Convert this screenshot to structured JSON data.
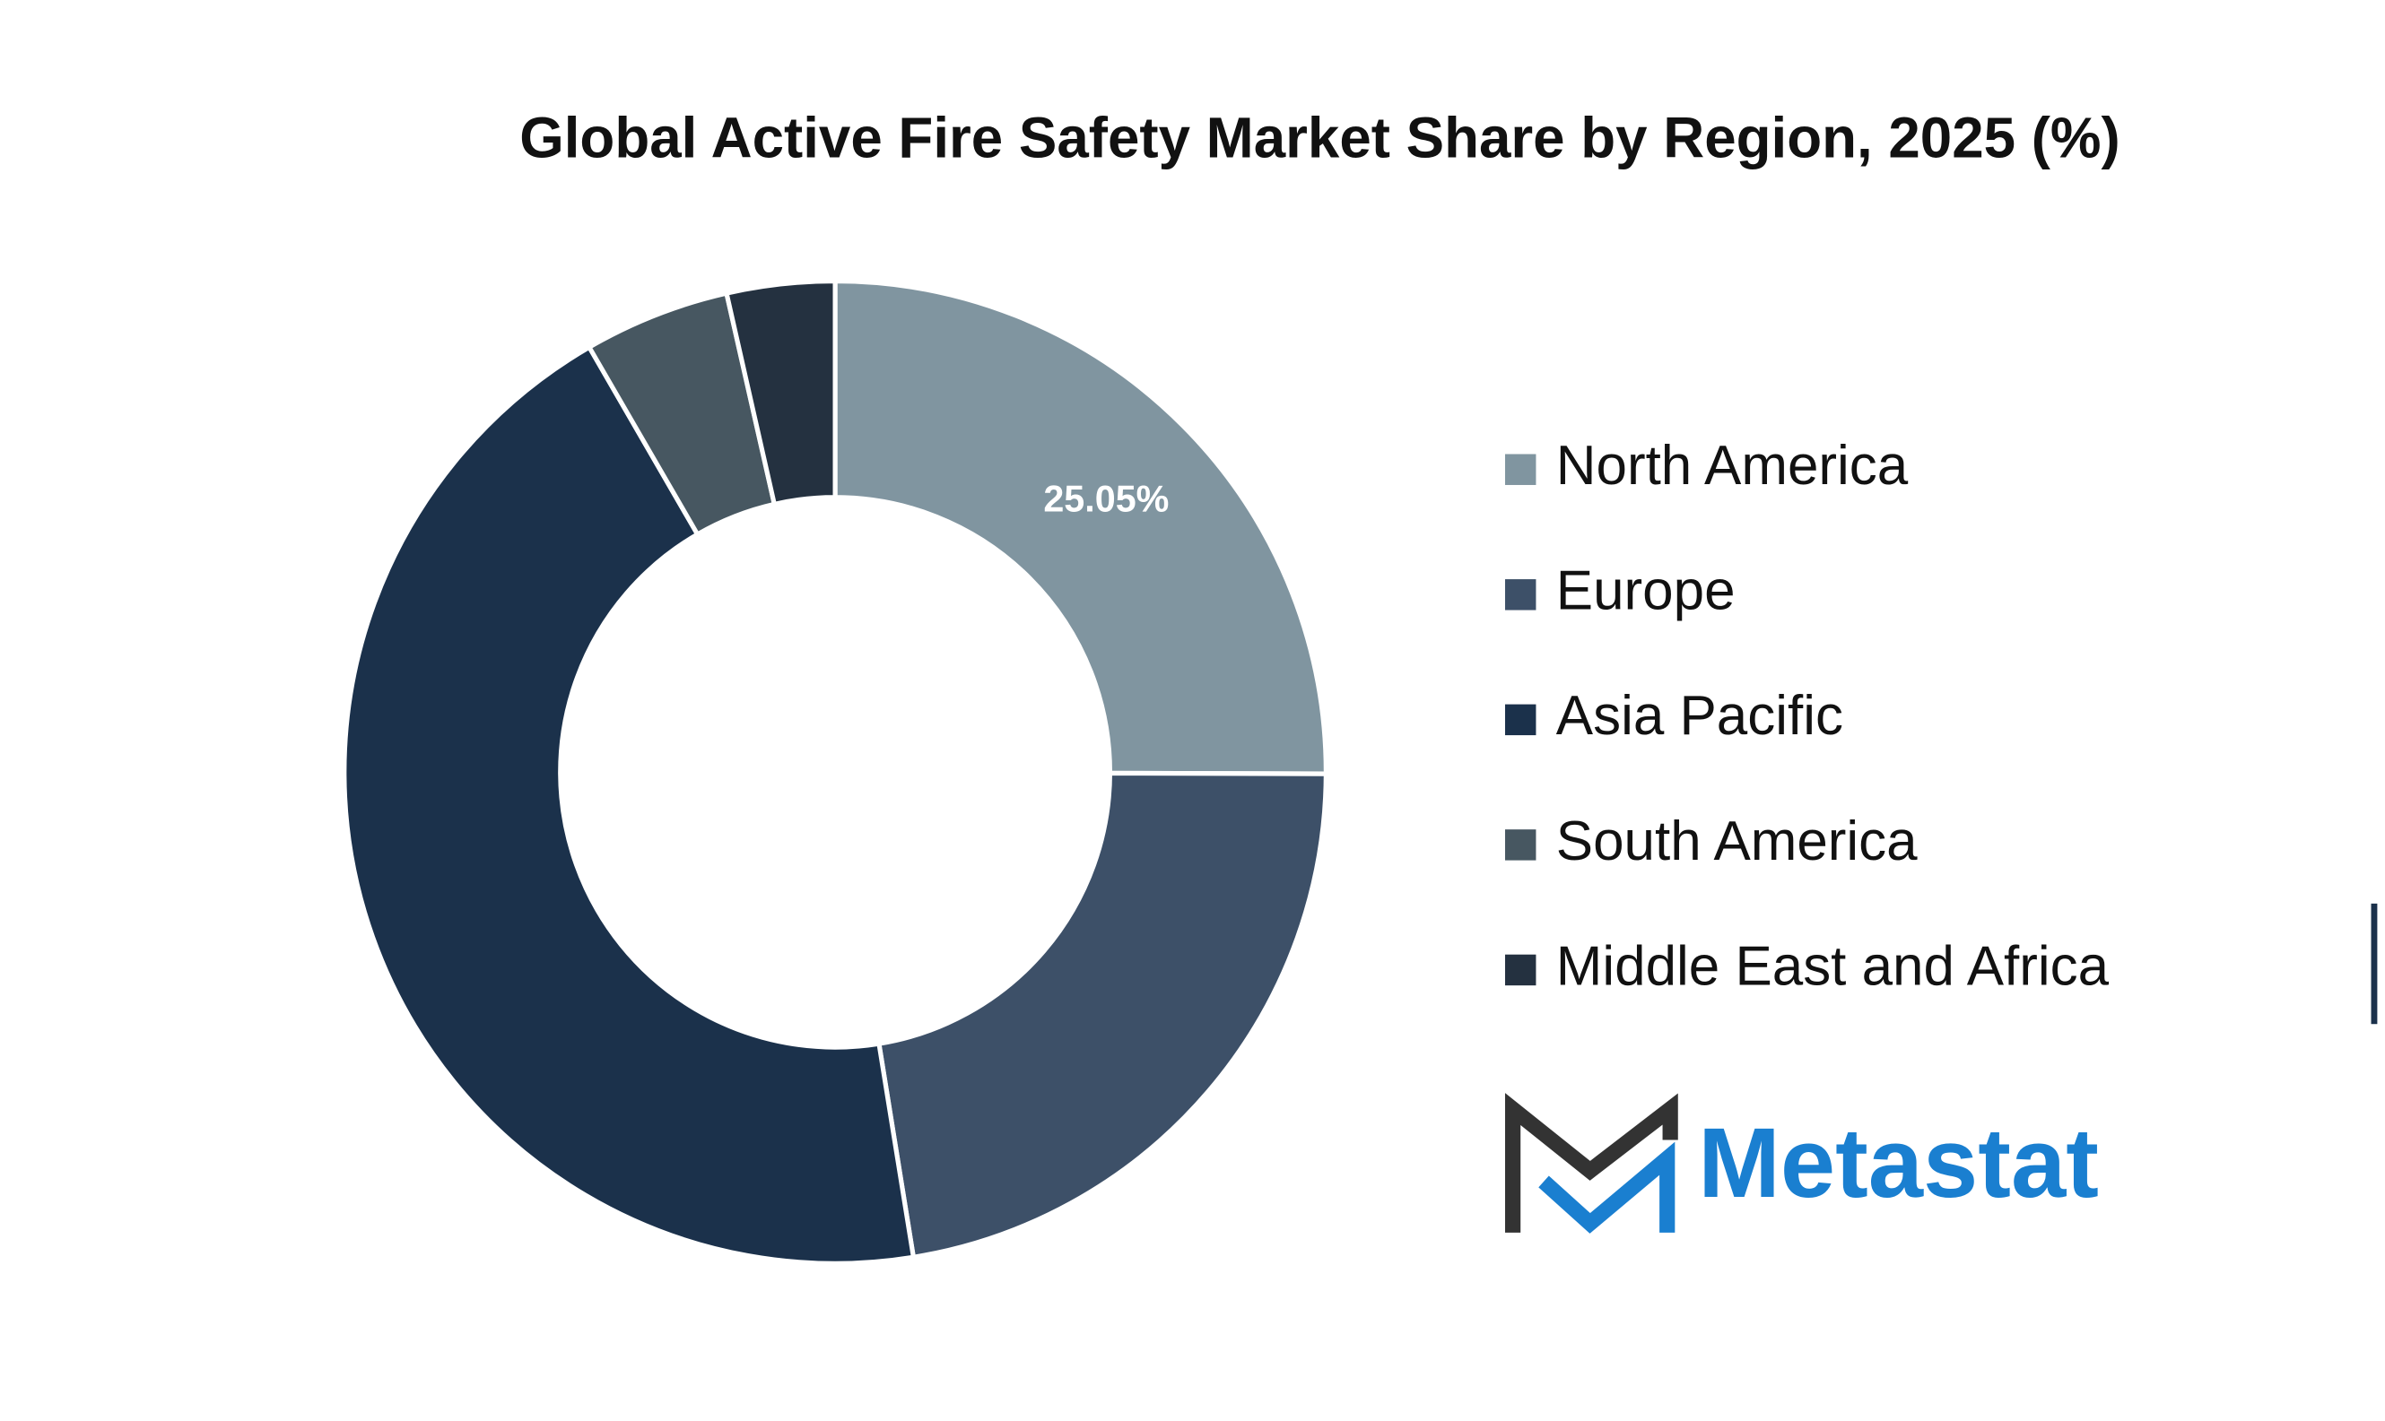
{
  "chart_data": {
    "type": "donut",
    "title": "Global Active Fire Safety Market Share by Region, 2025 (%)",
    "categories": [
      "North America",
      "Europe",
      "Asia Pacific",
      "South America",
      "Middle East and Africa"
    ],
    "values": [
      25.05,
      22.4,
      44.2,
      4.8,
      3.55
    ],
    "value_labels": [
      "25.05%",
      null,
      null,
      null,
      null
    ],
    "colors": [
      "#8095a0",
      "#3d5068",
      "#1b314b",
      "#475761",
      "#243140"
    ],
    "legend": "right"
  },
  "logo": {
    "text": "Metastat"
  }
}
